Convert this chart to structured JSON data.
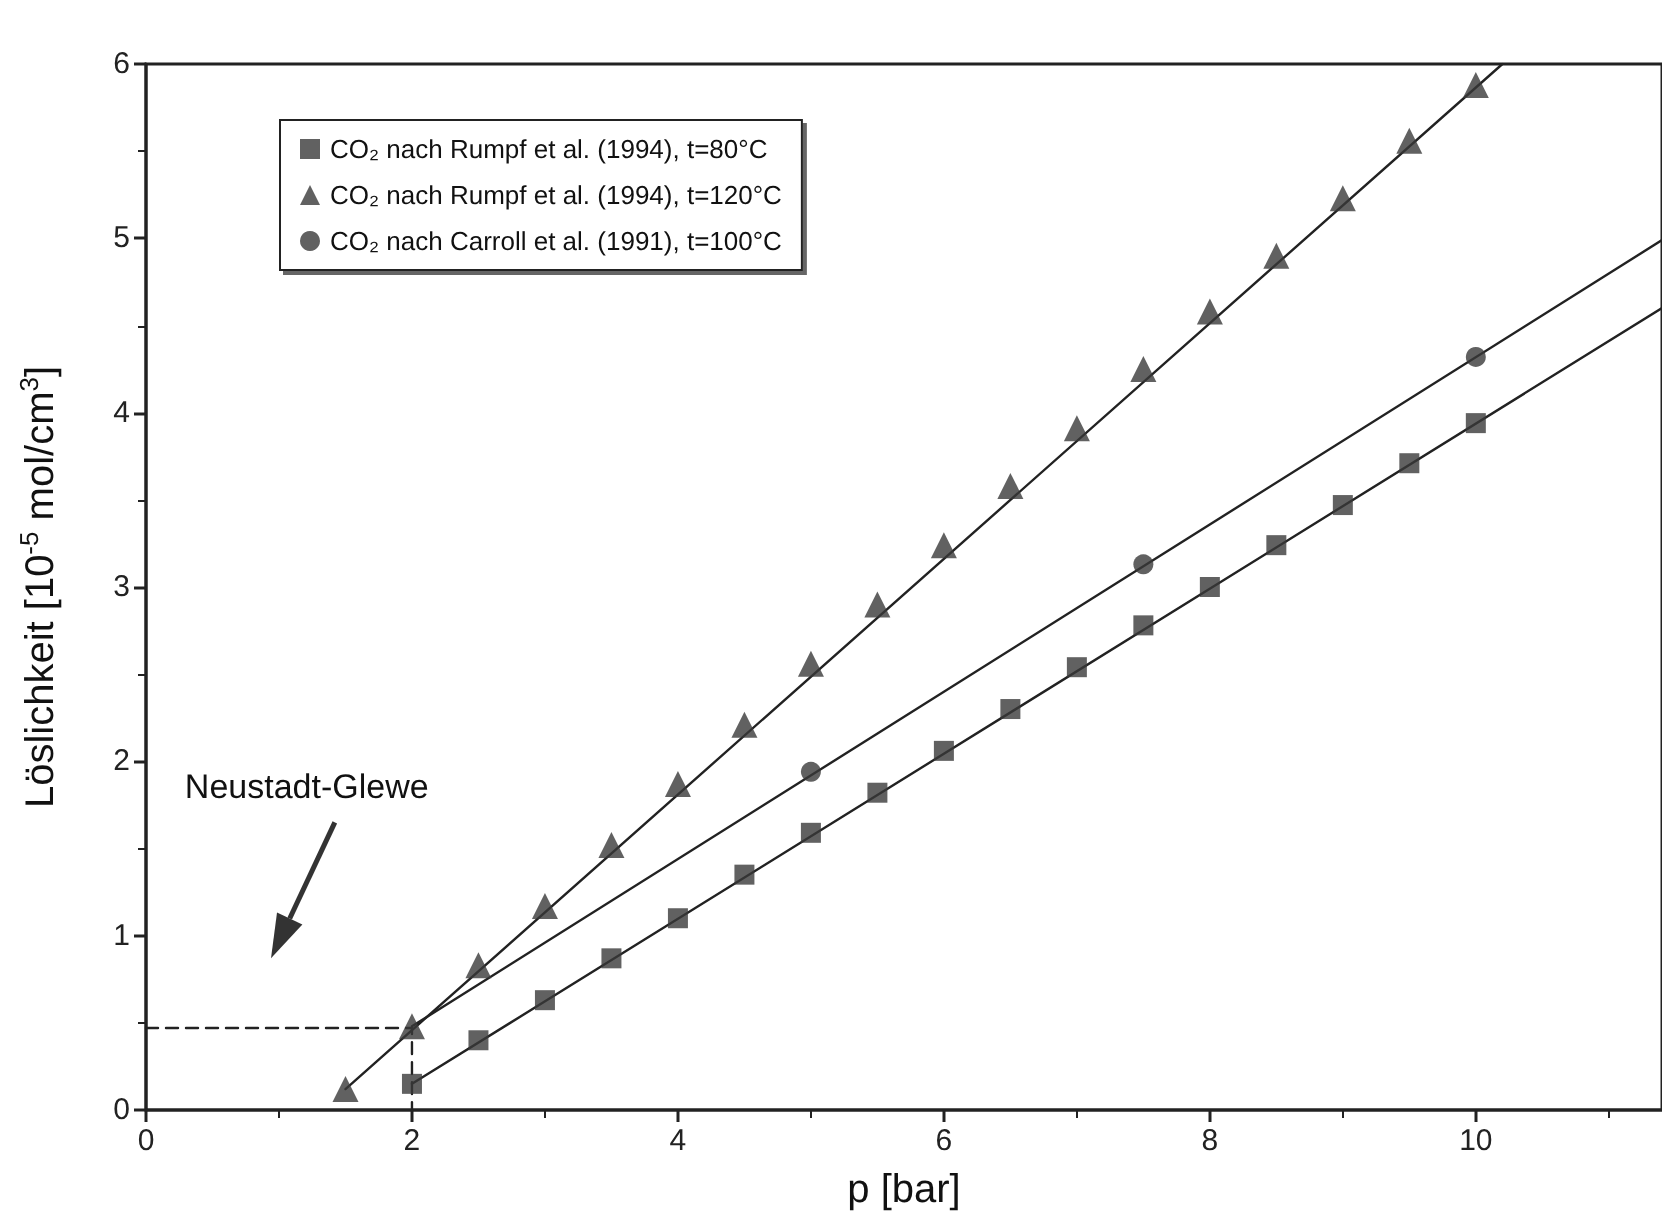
{
  "chart_data": {
    "type": "scatter",
    "xlabel": "p [bar]",
    "ylabel": "Löslichkeit [10$^{-5}$ mol/cm$^{3}$]",
    "xlim": [
      0,
      11.4
    ],
    "ylim": [
      0,
      6
    ],
    "xticks": [
      0,
      2,
      4,
      6,
      8,
      10
    ],
    "yticks": [
      0,
      1,
      2,
      3,
      4,
      5,
      6
    ],
    "grid": false,
    "legend": "top left",
    "series": [
      {
        "name": "CO₂ nach Rumpf et al. (1994), t=80°C",
        "color": "#3a3a3a",
        "marker": "square",
        "x": [
          2,
          2.5,
          3,
          3.5,
          4,
          4.5,
          5,
          5.5,
          6,
          6.5,
          7,
          7.5,
          8,
          8.5,
          9,
          9.5,
          10
        ],
        "values": [
          0.15,
          0.4,
          0.63,
          0.87,
          1.1,
          1.35,
          1.59,
          1.82,
          2.06,
          2.3,
          2.54,
          2.78,
          3.0,
          3.24,
          3.47,
          3.71,
          3.94
        ]
      },
      {
        "name": "CO₂ nach Rumpf et al. (1994), t=120°C",
        "color": "#3a3a3a",
        "marker": "triangle",
        "x": [
          1.5,
          2,
          2.5,
          3,
          3.5,
          4,
          4.5,
          5,
          5.5,
          6,
          6.5,
          7,
          7.5,
          8,
          8.5,
          9,
          9.5,
          10
        ],
        "values": [
          0.12,
          0.48,
          0.83,
          1.17,
          1.52,
          1.87,
          2.21,
          2.56,
          2.9,
          3.24,
          3.58,
          3.91,
          4.25,
          4.58,
          4.9,
          5.23,
          5.56,
          5.88
        ]
      },
      {
        "name": "CO₂ nach Carroll et al. (1991), t=100°C",
        "color": "#3a3a3a",
        "marker": "circle",
        "x": [
          5,
          7.5,
          10
        ],
        "values": [
          1.94,
          3.13,
          4.32
        ]
      },
      {
        "type": "line",
        "color": "#222222",
        "marker": "none",
        "line_style": "solid",
        "x": [
          2,
          11.4
        ],
        "values": [
          0.15,
          4.6
        ]
      },
      {
        "type": "line",
        "color": "#222222",
        "marker": "none",
        "line_style": "solid",
        "x": [
          1.5,
          10.2
        ],
        "values": [
          0.12,
          6
        ]
      },
      {
        "type": "line",
        "color": "#222222",
        "marker": "none",
        "line_style": "solid",
        "x": [
          2,
          11.4
        ],
        "values": [
          0.48,
          4.99
        ]
      },
      {
        "type": "line",
        "color": "#222222",
        "marker": "none",
        "line_style": "dashed",
        "x": [
          0,
          2,
          2
        ],
        "values": [
          0.47,
          0.47,
          0
        ]
      }
    ],
    "annotations": [
      "Neustadt-Glewe"
    ]
  }
}
